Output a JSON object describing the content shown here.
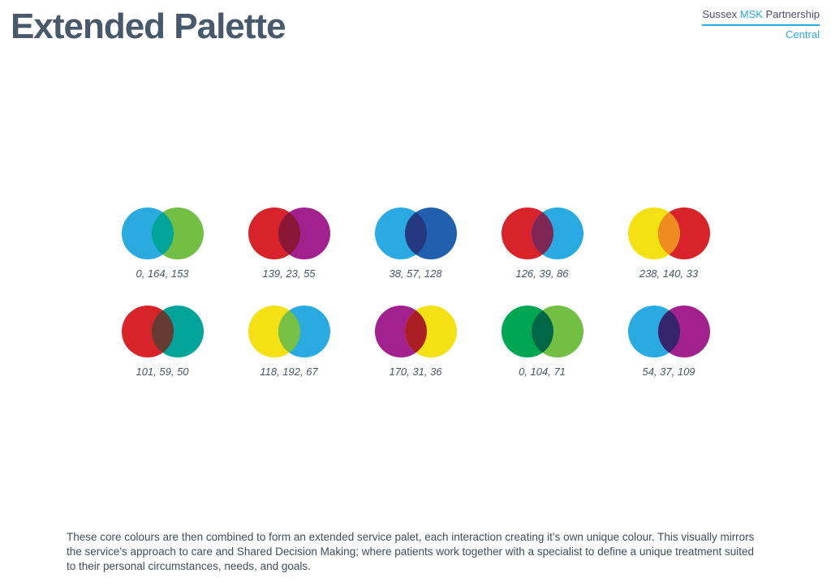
{
  "title": "Extended Palette",
  "logo": {
    "brand_part1": "Sussex ",
    "brand_part2": "MSK",
    "brand_part3": " Partnership",
    "region": "Central",
    "accent_color": "#2BACE2",
    "dark_color": "#4F4B72"
  },
  "palette": {
    "per_row": 5,
    "pairs": [
      {
        "left": "#29ABE2",
        "right": "#72BF44",
        "overlap": "#00A499",
        "label": "0, 164, 153"
      },
      {
        "left": "#D8232A",
        "right": "#A3218E",
        "overlap": "#8B1737",
        "label": "139, 23, 55"
      },
      {
        "left": "#29ABE2",
        "right": "#2060AE",
        "overlap": "#263980",
        "label": "38, 57, 128"
      },
      {
        "left": "#D8232A",
        "right": "#29ABE2",
        "overlap": "#7E2756",
        "label": "126, 39, 86"
      },
      {
        "left": "#F3E114",
        "right": "#D8232A",
        "overlap": "#EE8C21",
        "label": "238, 140, 33"
      },
      {
        "left": "#D8232A",
        "right": "#00A499",
        "overlap": "#653B32",
        "label": "101, 59, 50"
      },
      {
        "left": "#F3E114",
        "right": "#29ABE2",
        "overlap": "#76C043",
        "label": "118, 192, 67"
      },
      {
        "left": "#A3218E",
        "right": "#F3E114",
        "overlap": "#AA1F24",
        "label": "170, 31, 36"
      },
      {
        "left": "#00A651",
        "right": "#72BF44",
        "overlap": "#006847",
        "label": "0, 104, 71"
      },
      {
        "left": "#29ABE2",
        "right": "#A3218E",
        "overlap": "#36256D",
        "label": "54, 37, 109"
      }
    ]
  },
  "footer": {
    "text": "These core colours are then combined to form an extended service palet, each interaction creating it’s own unique colour. This visually mirrors the service’s approach to care and Shared Decision Making; where patients work together with a specialist to define a unique treatment suited to their personal circumstances, needs, and goals."
  }
}
